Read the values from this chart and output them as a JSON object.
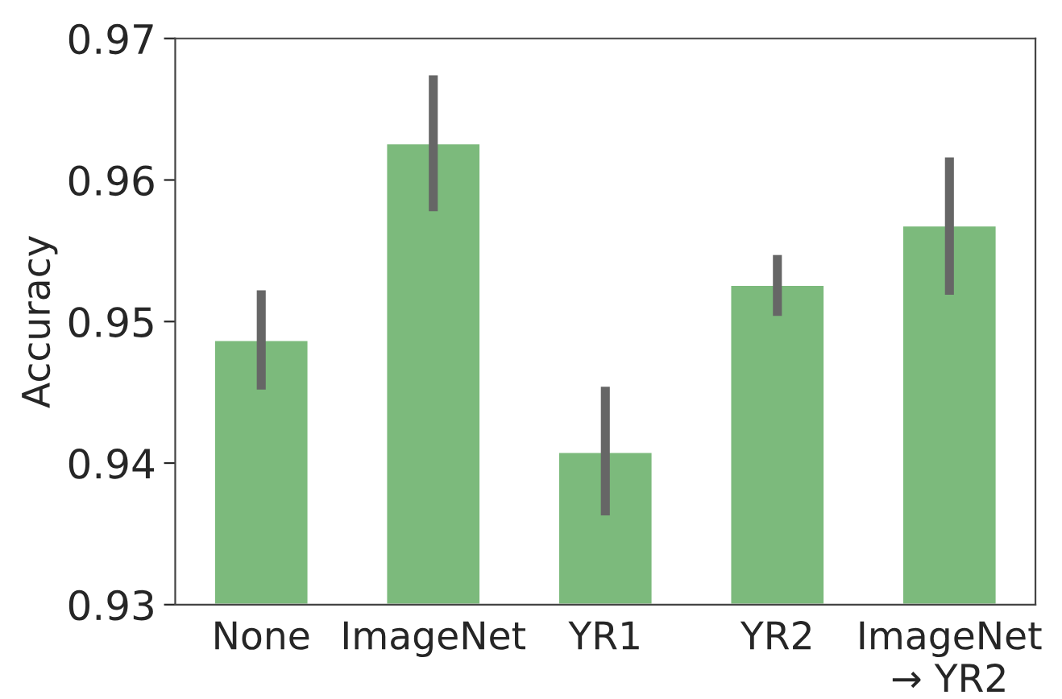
{
  "chart_data": {
    "type": "bar",
    "ylabel": "Accuracy",
    "categories": [
      "None",
      "ImageNet",
      "YR1",
      "YR2",
      "ImageNet\n→ YR2"
    ],
    "values": [
      0.9487,
      0.9626,
      0.9408,
      0.9526,
      0.9568
    ],
    "errors": [
      [
        0.9452,
        0.9522
      ],
      [
        0.9578,
        0.9674
      ],
      [
        0.9363,
        0.9454
      ],
      [
        0.9504,
        0.9547
      ],
      [
        0.9519,
        0.9616
      ]
    ],
    "color": "#7cba7c",
    "ylim": [
      0.93,
      0.97
    ],
    "yticks": [
      0.93,
      0.94,
      0.95,
      0.96,
      0.97
    ],
    "grid": false
  }
}
